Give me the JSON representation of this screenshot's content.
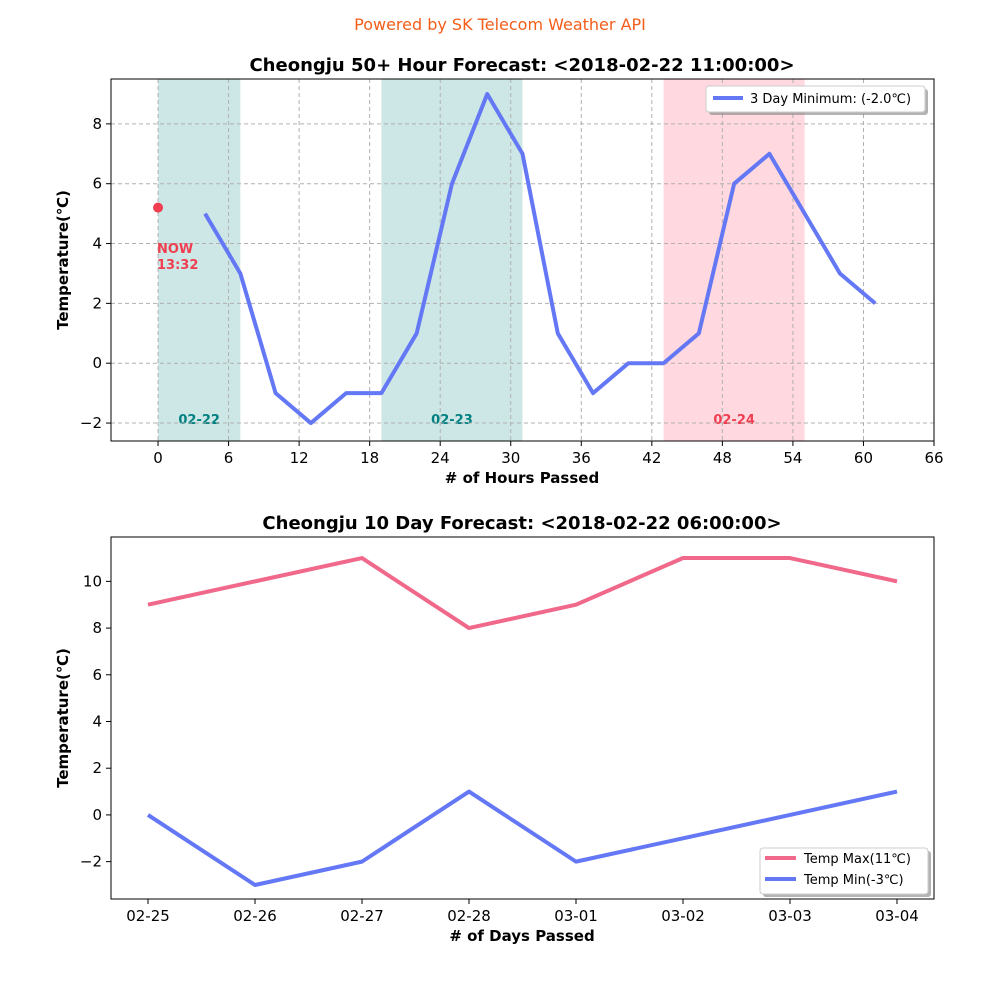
{
  "header": {
    "attribution": "Powered by SK Telecom Weather API"
  },
  "chart_data": [
    {
      "type": "line",
      "title": "Cheongju 50+ Hour Forecast: <2018-02-22 11:00:00>",
      "xlabel": "# of Hours Passed",
      "ylabel": "Temperature(℃)",
      "xlim": [
        -4,
        66
      ],
      "ylim": [
        -2.6,
        9.5
      ],
      "xticks": [
        0,
        6,
        12,
        18,
        24,
        30,
        36,
        42,
        48,
        54,
        60,
        66
      ],
      "yticks": [
        -2,
        0,
        2,
        4,
        6,
        8
      ],
      "grid": true,
      "legend_position": "top-right",
      "series": [
        {
          "name": "3 Day Minimum: (-2.0℃)",
          "color": "#6478f5",
          "x": [
            4,
            7,
            10,
            13,
            16,
            19,
            22,
            25,
            28,
            31,
            34,
            37,
            40,
            43,
            46,
            49,
            52,
            55,
            58,
            61
          ],
          "y": [
            5,
            3,
            -1,
            -2,
            -1,
            -1,
            1,
            6,
            9,
            7,
            1,
            -1,
            0,
            0,
            1,
            6,
            7,
            5,
            3,
            2
          ]
        }
      ],
      "now_marker": {
        "x": 0,
        "y": 5.2,
        "label_line1": "NOW",
        "label_line2": "13:32",
        "color": "#f03e50"
      },
      "day_bands": [
        {
          "label": "02-22",
          "x_start": 0,
          "x_end": 7,
          "color": "#cde7e6",
          "label_color": "#008080"
        },
        {
          "label": "02-23",
          "x_start": 19,
          "x_end": 31,
          "color": "#cde7e6",
          "label_color": "#008080"
        },
        {
          "label": "02-24",
          "x_start": 43,
          "x_end": 55,
          "color": "#ffd9df",
          "label_color": "#f03e50"
        }
      ]
    },
    {
      "type": "line",
      "title": "Cheongju 10 Day Forecast: <2018-02-22 06:00:00>",
      "xlabel": "# of Days Passed",
      "ylabel": "Temperature(℃)",
      "categories": [
        "02-25",
        "02-26",
        "02-27",
        "02-28",
        "03-01",
        "03-02",
        "03-03",
        "03-04"
      ],
      "ylim": [
        -3.6,
        11.9
      ],
      "yticks": [
        -2,
        0,
        2,
        4,
        6,
        8,
        10
      ],
      "grid": false,
      "legend_position": "bottom-right",
      "series": [
        {
          "name": "Temp Max(11℃)",
          "color": "#f0688a",
          "values": [
            9,
            10,
            11,
            8,
            9,
            11,
            11,
            10
          ]
        },
        {
          "name": "Temp Min(-3℃)",
          "color": "#6478f5",
          "values": [
            0,
            -3,
            -2,
            1,
            -2,
            -1,
            0,
            1
          ]
        }
      ]
    }
  ]
}
